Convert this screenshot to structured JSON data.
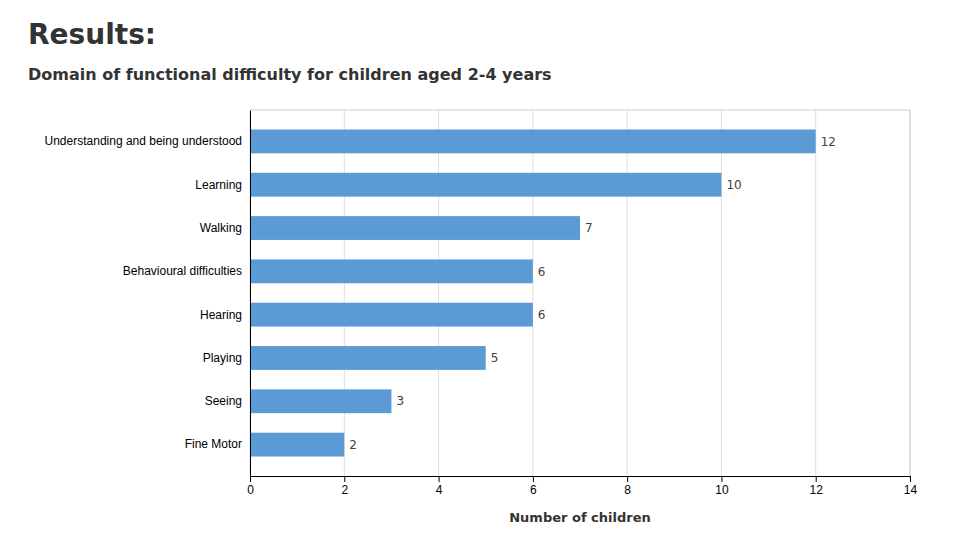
{
  "chart_data": {
    "type": "bar",
    "orientation": "horizontal",
    "title": "Results:",
    "subtitle": "Domain of functional difficulty for children aged 2-4 years",
    "categories": [
      "Fine Motor",
      "Seeing",
      "Playing",
      "Hearing",
      "Behavioural difficulties",
      "Walking",
      "Learning",
      "Understanding and being understood"
    ],
    "values": [
      2,
      3,
      5,
      6,
      6,
      7,
      10,
      12
    ],
    "color": "#5B9BD5",
    "x_label": "Number of children",
    "xlim": [
      0,
      14
    ],
    "xticks": [
      0,
      2,
      4,
      6,
      8,
      10,
      12,
      14
    ],
    "grid": true,
    "data_labels": true
  }
}
